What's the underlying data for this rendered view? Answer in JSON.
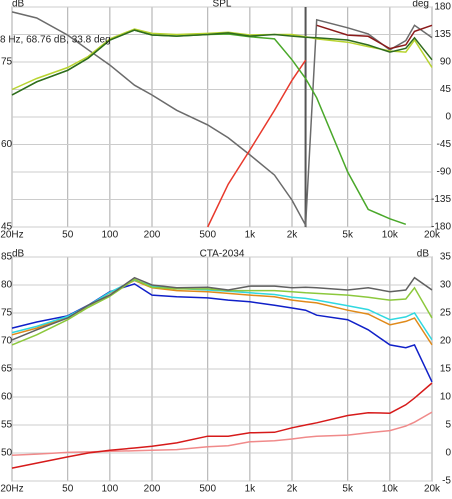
{
  "chart_data": [
    {
      "type": "line",
      "title": "SPL",
      "y_label": "dB",
      "y2_label": "deg",
      "log_x": true,
      "grid": true,
      "annotation": "8 Hz, 68.76 dB, 33.8 deg",
      "cursor_x": 2500,
      "x": [
        20,
        30,
        50,
        70,
        100,
        150,
        200,
        300,
        500,
        700,
        1000,
        1500,
        2000,
        2500,
        3000,
        5000,
        7000,
        10000,
        13000,
        15000,
        20000
      ],
      "xlim": [
        20,
        20000
      ],
      "xticks": [
        {
          "value": 20,
          "label": "20Hz"
        },
        50,
        100,
        200,
        500,
        {
          "value": 1000,
          "label": "1k"
        },
        {
          "value": 2000,
          "label": "2k"
        },
        {
          "value": 5000,
          "label": "5k"
        },
        {
          "value": 10000,
          "label": "10k"
        },
        {
          "value": 20000,
          "label": "20k"
        }
      ],
      "ylim": [
        45,
        85
      ],
      "yticks": [
        45,
        60,
        75
      ],
      "y2lim": [
        -180,
        180
      ],
      "y2ticks": [
        180,
        135,
        90,
        45,
        0,
        -45,
        -90,
        -135,
        -180
      ],
      "series": [
        {
          "color": "#6b6b6b",
          "axis": "y2",
          "values": [
            172,
            162,
            134,
            110,
            85,
            52,
            36,
            11,
            -13,
            -34,
            -62,
            -95,
            -136,
            -177,
            159,
            146,
            136,
            110,
            125,
            150,
            130
          ]
        },
        {
          "color": "#e8392c",
          "axis": "y2",
          "values": [
            null,
            null,
            null,
            null,
            null,
            null,
            null,
            null,
            -180,
            -110,
            -54,
            11,
            60,
            93,
            null,
            null,
            null,
            null,
            null,
            null,
            null
          ]
        },
        {
          "color": "#8b1a1a",
          "axis": "y2",
          "values": [
            null,
            null,
            null,
            null,
            null,
            null,
            null,
            null,
            null,
            null,
            null,
            null,
            null,
            null,
            150,
            134,
            132,
            112,
            118,
            140,
            150
          ]
        },
        {
          "color": "#4aa82a",
          "values": [
            69,
            71.4,
            73.5,
            75.7,
            79,
            80.8,
            79.9,
            79.7,
            80,
            80.1,
            79.6,
            79.2,
            75.4,
            72,
            68.5,
            55,
            48.2,
            46.5,
            45.5,
            null,
            null
          ]
        },
        {
          "color": "#b8d430",
          "values": [
            70,
            72,
            74,
            76,
            79.2,
            81,
            80.2,
            80,
            80.2,
            80.4,
            79.9,
            80,
            80,
            79.6,
            79.2,
            78.6,
            77.8,
            77,
            76.8,
            79,
            74
          ]
        },
        {
          "color": "#2f6b1f",
          "values": [
            69,
            71.4,
            73.5,
            75.7,
            79,
            80.8,
            79.9,
            79.7,
            80,
            80.3,
            79.7,
            80,
            79.7,
            79.5,
            79.4,
            79,
            78.1,
            76.8,
            77.5,
            79.4,
            75.4
          ]
        }
      ]
    },
    {
      "type": "line",
      "title": "CTA-2034",
      "y_label": "dB",
      "y2_label": "dB",
      "log_x": true,
      "grid": true,
      "x": [
        20,
        30,
        50,
        70,
        100,
        150,
        200,
        300,
        500,
        700,
        1000,
        1500,
        2000,
        2500,
        3000,
        5000,
        7000,
        10000,
        13000,
        15000,
        20000
      ],
      "xlim": [
        20,
        20000
      ],
      "xticks": [
        {
          "value": 20,
          "label": "20Hz"
        },
        50,
        100,
        200,
        500,
        {
          "value": 1000,
          "label": "1k"
        },
        {
          "value": 2000,
          "label": "2k"
        },
        {
          "value": 5000,
          "label": "5k"
        },
        {
          "value": 10000,
          "label": "10k"
        },
        {
          "value": 20000,
          "label": "20k"
        }
      ],
      "ylim": [
        45,
        85
      ],
      "yticks": [
        50,
        55,
        60,
        65,
        70,
        75,
        80,
        85
      ],
      "y2lim": [
        -5,
        35
      ],
      "y2ticks": [
        -5,
        0,
        5,
        10,
        15,
        20,
        25,
        30,
        35
      ],
      "series": [
        {
          "color": "#f08a8a",
          "axis": "y2",
          "values": [
            -0.4,
            -0.2,
            0.1,
            0.2,
            0.3,
            0.4,
            0.5,
            0.6,
            1.1,
            1.3,
            2,
            2.2,
            2.5,
            2.8,
            3,
            3.2,
            3.6,
            4,
            4.8,
            5.5,
            7.3
          ]
        },
        {
          "color": "#d61a1a",
          "axis": "y2",
          "values": [
            -2.7,
            -1.8,
            -0.7,
            0,
            0.5,
            0.9,
            1.2,
            1.8,
            3,
            3,
            3.6,
            3.7,
            4.5,
            5,
            5.4,
            6.7,
            7.2,
            7.1,
            8.6,
            9.8,
            12.5
          ]
        },
        {
          "color": "#1020c8",
          "values": [
            72.3,
            73.4,
            74.5,
            76.4,
            78.8,
            80.2,
            78.2,
            77.9,
            77.7,
            77.3,
            77,
            76.4,
            75.9,
            75.5,
            74.6,
            73.8,
            72,
            69.3,
            68.8,
            69.3,
            62.7
          ]
        },
        {
          "color": "#e08a1a",
          "values": [
            71.1,
            72.3,
            74.3,
            76.2,
            78.6,
            80.8,
            79.5,
            79,
            78.8,
            78.5,
            78.2,
            77.9,
            77.3,
            77,
            76.8,
            75.5,
            74.8,
            72.9,
            73.5,
            74.1,
            69.3
          ]
        },
        {
          "color": "#30d8e0",
          "values": [
            71.5,
            72.6,
            74.4,
            76.3,
            78.7,
            80.9,
            79.8,
            79.4,
            79.1,
            78.9,
            78.6,
            78.3,
            77.8,
            77.6,
            77.3,
            76.3,
            75.6,
            73.8,
            74.3,
            75,
            70.2
          ]
        },
        {
          "color": "#8cc83c",
          "values": [
            69.3,
            71.1,
            73.8,
            76,
            78,
            81,
            79.6,
            79.3,
            79.3,
            79,
            79,
            79,
            78.8,
            78.6,
            78.5,
            78.2,
            77.8,
            77.3,
            77.5,
            79.5,
            74.1
          ]
        },
        {
          "color": "#606060",
          "values": [
            70.2,
            72,
            74.1,
            76.4,
            78.2,
            81.3,
            80,
            79.5,
            79.6,
            79.1,
            79.8,
            79.8,
            79.5,
            79.6,
            79.5,
            79.1,
            79.5,
            78.8,
            79.1,
            81.3,
            79.1
          ]
        }
      ]
    }
  ]
}
